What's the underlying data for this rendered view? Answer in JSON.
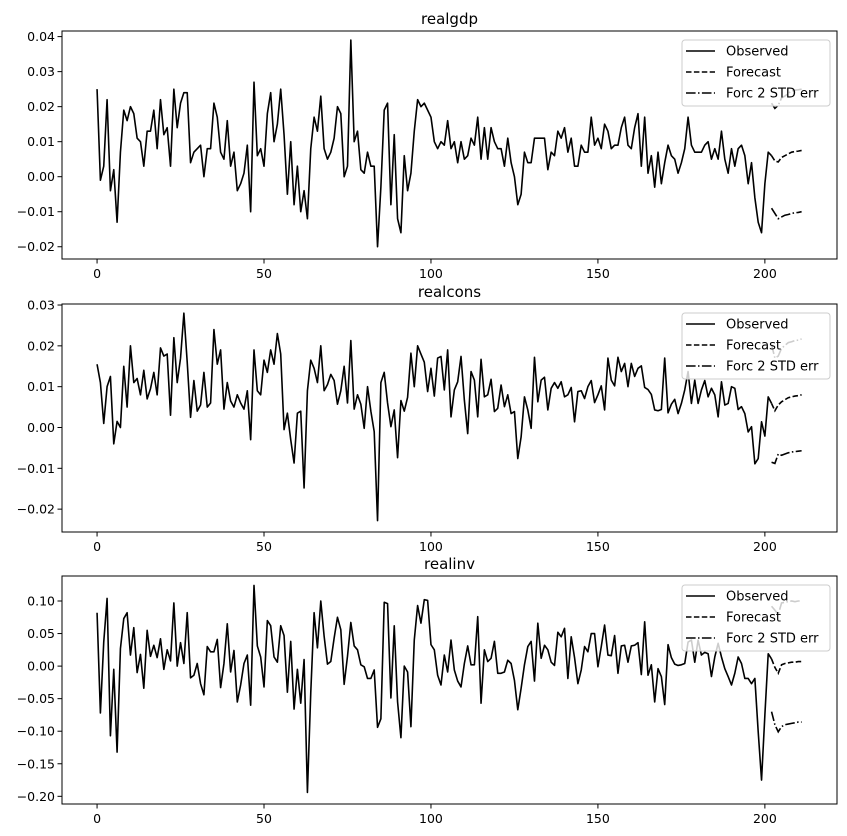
{
  "chart_data": [
    {
      "type": "line",
      "title": "realgdp",
      "xlabel": "",
      "ylabel": "",
      "xlim": [
        -10.5,
        221.6
      ],
      "ylim": [
        -0.0235,
        0.0416
      ],
      "grid": false,
      "legend_placement": "top-right",
      "legend": [
        "Observed",
        "Forecast",
        "Forc 2 STD err"
      ],
      "x_ticks": [
        0,
        50,
        100,
        150,
        200
      ],
      "x_tick_labels": [
        "0",
        "50",
        "100",
        "150",
        "200"
      ],
      "y_ticks": [
        0.04,
        0.03,
        0.02,
        0.01,
        0.0,
        -0.01,
        -0.02
      ],
      "y_tick_labels": [
        "0.04",
        "0.03",
        "0.02",
        "0.01",
        "0.00",
        "−0.01",
        "−0.02"
      ],
      "observed_start": 0,
      "observed": [
        0.025,
        -0.001,
        0.003,
        0.022,
        -0.004,
        0.002,
        -0.013,
        0.007,
        0.019,
        0.016,
        0.02,
        0.018,
        0.011,
        0.01,
        0.003,
        0.013,
        0.013,
        0.019,
        0.008,
        0.022,
        0.012,
        0.014,
        0.003,
        0.025,
        0.014,
        0.021,
        0.024,
        0.024,
        0.004,
        0.007,
        0.008,
        0.009,
        0.0,
        0.008,
        0.008,
        0.021,
        0.017,
        0.007,
        0.005,
        0.016,
        0.003,
        0.007,
        -0.004,
        -0.002,
        0.001,
        0.009,
        -0.01,
        0.027,
        0.006,
        0.008,
        0.003,
        0.018,
        0.024,
        0.01,
        0.015,
        0.025,
        0.012,
        -0.005,
        0.01,
        -0.008,
        0.003,
        -0.01,
        -0.004,
        -0.012,
        0.008,
        0.017,
        0.013,
        0.023,
        0.008,
        0.005,
        0.007,
        0.011,
        0.02,
        0.018,
        0.0,
        0.003,
        0.039,
        0.01,
        0.013,
        0.002,
        0.001,
        0.007,
        0.003,
        0.003,
        -0.02,
        -0.003,
        0.019,
        0.021,
        -0.008,
        0.012,
        -0.012,
        -0.016,
        0.006,
        -0.004,
        0.001,
        0.013,
        0.022,
        0.02,
        0.021,
        0.019,
        0.017,
        0.01,
        0.008,
        0.01,
        0.009,
        0.016,
        0.008,
        0.01,
        0.004,
        0.01,
        0.005,
        0.006,
        0.011,
        0.009,
        0.017,
        0.005,
        0.014,
        0.005,
        0.014,
        0.01,
        0.008,
        0.008,
        0.003,
        0.011,
        0.004,
        0.0,
        -0.008,
        -0.005,
        0.007,
        0.004,
        0.004,
        0.011,
        0.011,
        0.011,
        0.011,
        0.002,
        0.007,
        0.006,
        0.013,
        0.011,
        0.014,
        0.007,
        0.011,
        0.003,
        0.003,
        0.009,
        0.007,
        0.007,
        0.017,
        0.009,
        0.011,
        0.008,
        0.015,
        0.013,
        0.008,
        0.009,
        0.009,
        0.014,
        0.017,
        0.009,
        0.008,
        0.014,
        0.018,
        0.003,
        0.017,
        0.001,
        0.006,
        -0.003,
        0.007,
        -0.002,
        0.004,
        0.009,
        0.006,
        0.005,
        0.001,
        0.004,
        0.008,
        0.017,
        0.009,
        0.007,
        0.007,
        0.007,
        0.009,
        0.01,
        0.005,
        0.008,
        0.005,
        0.013,
        0.005,
        0.001,
        0.008,
        0.003,
        0.008,
        0.009,
        0.006,
        -0.002,
        0.004,
        -0.006,
        -0.013,
        -0.016,
        -0.002,
        0.007,
        0.006
      ],
      "forecast_start": 202,
      "forecast": [
        0.006,
        0.0045,
        0.0042,
        0.0055,
        0.006,
        0.0065,
        0.007,
        0.0072,
        0.0073,
        0.0075
      ],
      "lower": [
        -0.009,
        -0.0105,
        -0.012,
        -0.0115,
        -0.011,
        -0.0108,
        -0.0105,
        -0.0103,
        -0.0102,
        -0.01
      ],
      "upper": [
        0.021,
        0.0195,
        0.0204,
        0.0225,
        0.023,
        0.0238,
        0.0245,
        0.0247,
        0.0248,
        0.025
      ]
    },
    {
      "type": "line",
      "title": "realcons",
      "xlabel": "",
      "ylabel": "",
      "xlim": [
        -10.5,
        221.6
      ],
      "ylim": [
        -0.0256,
        0.03025
      ],
      "grid": false,
      "legend_placement": "top-right",
      "legend": [
        "Observed",
        "Forecast",
        "Forc 2 STD err"
      ],
      "x_ticks": [
        0,
        50,
        100,
        150,
        200
      ],
      "x_tick_labels": [
        "0",
        "50",
        "100",
        "150",
        "200"
      ],
      "y_ticks": [
        0.03,
        0.02,
        0.01,
        0.0,
        -0.01,
        -0.02
      ],
      "y_tick_labels": [
        "0.03",
        "0.02",
        "0.01",
        "0.00",
        "−0.01",
        "−0.02"
      ],
      "observed_start": 0,
      "observed": [
        0.0155,
        0.011,
        0.001,
        0.01,
        0.0125,
        -0.004,
        0.0015,
        0.0,
        0.015,
        0.005,
        0.02,
        0.011,
        0.012,
        0.008,
        0.014,
        0.007,
        0.0095,
        0.0135,
        0.008,
        0.0195,
        0.0175,
        0.018,
        0.003,
        0.022,
        0.011,
        0.017,
        0.028,
        0.016,
        0.0025,
        0.0115,
        0.004,
        0.0055,
        0.0135,
        0.005,
        0.006,
        0.024,
        0.0155,
        0.019,
        0.0045,
        0.011,
        0.0065,
        0.005,
        0.008,
        0.006,
        0.0045,
        0.009,
        -0.003,
        0.019,
        0.009,
        0.008,
        0.0165,
        0.0135,
        0.019,
        0.0155,
        0.023,
        0.018,
        -0.0005,
        0.0035,
        -0.003,
        -0.0087,
        0.0035,
        0.004,
        -0.0148,
        0.009,
        0.0165,
        0.0145,
        0.011,
        0.02,
        0.009,
        0.0105,
        0.013,
        0.0115,
        0.0057,
        0.009,
        0.015,
        0.006,
        0.0213,
        0.0045,
        0.008,
        0.0057,
        -0.0002,
        0.01,
        0.004,
        -0.001,
        -0.0228,
        0.011,
        0.0135,
        0.006,
        0.0002,
        0.0043,
        -0.0074,
        0.0066,
        0.004,
        0.0074,
        0.0182,
        0.01,
        0.02,
        0.018,
        0.016,
        0.0088,
        0.0145,
        0.0077,
        0.017,
        0.0174,
        0.0092,
        0.019,
        0.0026,
        0.0092,
        0.0112,
        0.0174,
        0.0067,
        -0.0015,
        0.0137,
        0.0116,
        0.0026,
        0.0167,
        0.0075,
        0.008,
        0.0118,
        0.0039,
        0.0047,
        0.0104,
        0.0051,
        0.008,
        0.0034,
        0.0039,
        -0.0076,
        -0.0023,
        0.0075,
        0.0043,
        -0.0002,
        0.0172,
        0.0063,
        0.0116,
        0.0123,
        0.0043,
        0.0096,
        0.011,
        0.0096,
        0.0112,
        0.0075,
        0.008,
        0.0098,
        0.0014,
        0.0088,
        0.009,
        0.0071,
        0.01,
        0.0115,
        0.0061,
        0.008,
        0.0102,
        0.0043,
        0.017,
        0.0116,
        0.0102,
        0.0172,
        0.0137,
        0.0157,
        0.01,
        0.0157,
        0.0125,
        0.0145,
        0.0151,
        0.0098,
        0.0093,
        0.0081,
        0.0043,
        0.0041,
        0.0044,
        0.017,
        0.0036,
        0.0057,
        0.0069,
        0.0034,
        0.0059,
        0.0092,
        0.0137,
        0.0059,
        0.0116,
        0.0059,
        0.0092,
        0.0115,
        0.0075,
        0.0096,
        0.008,
        0.0026,
        0.0112,
        0.0055,
        0.0059,
        0.01,
        0.0096,
        0.0044,
        0.0051,
        0.0034,
        -0.0011,
        0.0002,
        -0.0089,
        -0.0076,
        0.0014,
        -0.0021,
        0.0075,
        0.0059
      ],
      "forecast_start": 202,
      "forecast": [
        0.0059,
        0.0041,
        0.0055,
        0.0063,
        0.0068,
        0.0073,
        0.0075,
        0.0077,
        0.0078,
        0.008
      ],
      "lower": [
        -0.0085,
        -0.0088,
        -0.0065,
        -0.0068,
        -0.0065,
        -0.0062,
        -0.006,
        -0.0059,
        -0.0058,
        -0.0057
      ],
      "upper": [
        0.0203,
        0.017,
        0.0175,
        0.0194,
        0.0201,
        0.0208,
        0.021,
        0.0213,
        0.0214,
        0.0217
      ]
    },
    {
      "type": "line",
      "title": "realinv",
      "xlabel": "",
      "ylabel": "",
      "xlim": [
        -10.5,
        221.6
      ],
      "ylim": [
        -0.2118,
        0.1384
      ],
      "grid": false,
      "legend_placement": "top-right",
      "legend": [
        "Observed",
        "Forecast",
        "Forc 2 STD err"
      ],
      "x_ticks": [
        0,
        50,
        100,
        150,
        200
      ],
      "x_tick_labels": [
        "0",
        "50",
        "100",
        "150",
        "200"
      ],
      "y_ticks": [
        0.1,
        0.05,
        0.0,
        -0.05,
        -0.1,
        -0.15,
        -0.2
      ],
      "y_tick_labels": [
        "0.10",
        "0.05",
        "0.00",
        "−0.05",
        "−0.10",
        "−0.15",
        "−0.20"
      ],
      "observed_start": 0,
      "observed": [
        0.082,
        -0.072,
        0.037,
        0.104,
        -0.107,
        -0.005,
        -0.132,
        0.027,
        0.073,
        0.082,
        0.017,
        0.059,
        -0.01,
        0.018,
        -0.034,
        0.055,
        0.015,
        0.032,
        0.013,
        0.042,
        -0.005,
        0.025,
        0.008,
        0.097,
        0.0,
        0.036,
        0.004,
        0.082,
        -0.018,
        -0.014,
        0.004,
        -0.027,
        -0.044,
        0.03,
        0.022,
        0.022,
        0.041,
        -0.033,
        0.004,
        0.065,
        -0.009,
        0.024,
        -0.055,
        -0.029,
        0.004,
        0.017,
        -0.06,
        0.124,
        0.031,
        0.014,
        -0.032,
        0.07,
        0.062,
        0.014,
        0.006,
        0.062,
        0.047,
        -0.04,
        0.038,
        -0.066,
        -0.005,
        -0.057,
        0.01,
        -0.194,
        -0.041,
        0.082,
        0.028,
        0.1,
        0.046,
        0.003,
        0.007,
        0.043,
        0.075,
        0.056,
        -0.028,
        0.015,
        0.067,
        0.031,
        0.025,
        0.002,
        -0.001,
        -0.019,
        -0.019,
        -0.006,
        -0.094,
        -0.081,
        0.098,
        0.096,
        -0.049,
        0.062,
        -0.055,
        -0.11,
        0.0,
        -0.009,
        -0.093,
        0.04,
        0.093,
        0.066,
        0.102,
        0.101,
        0.033,
        0.025,
        -0.014,
        -0.029,
        0.017,
        -0.009,
        0.04,
        -0.006,
        -0.023,
        -0.032,
        0.004,
        0.031,
        0.002,
        0.002,
        0.076,
        -0.057,
        0.025,
        0.007,
        0.012,
        0.038,
        -0.011,
        -0.011,
        -0.009,
        0.009,
        0.004,
        -0.022,
        -0.067,
        -0.034,
        0.002,
        0.03,
        0.038,
        -0.023,
        0.066,
        0.012,
        0.032,
        0.025,
        0.006,
        0.001,
        0.052,
        0.045,
        0.058,
        -0.019,
        0.045,
        0.013,
        -0.027,
        -0.006,
        0.03,
        0.022,
        0.05,
        0.05,
        -0.001,
        0.03,
        0.063,
        0.017,
        0.016,
        0.047,
        -0.011,
        0.031,
        0.032,
        0.006,
        0.031,
        0.032,
        0.036,
        -0.013,
        0.068,
        -0.014,
        0.002,
        -0.055,
        -0.004,
        -0.016,
        -0.059,
        0.033,
        0.013,
        0.003,
        0.001,
        0.002,
        0.004,
        0.037,
        0.04,
        0.006,
        0.04,
        0.017,
        0.021,
        0.019,
        -0.016,
        0.014,
        0.035,
        0.014,
        -0.004,
        -0.016,
        -0.029,
        -0.011,
        0.014,
        0.004,
        -0.019,
        -0.019,
        -0.027,
        -0.019,
        -0.101,
        -0.175,
        -0.075,
        0.019,
        0.011
      ],
      "forecast_start": 202,
      "forecast": [
        0.011,
        -0.002,
        -0.011,
        0.002,
        0.004,
        0.005,
        0.006,
        0.006,
        0.007,
        0.007
      ],
      "lower": [
        -0.07,
        -0.09,
        -0.101,
        -0.093,
        -0.09,
        -0.089,
        -0.088,
        -0.087,
        -0.086,
        -0.086
      ],
      "upper": [
        0.092,
        0.086,
        0.079,
        0.097,
        0.098,
        0.099,
        0.1,
        0.099,
        0.1,
        0.1
      ]
    }
  ],
  "colors": {
    "line": "#000000",
    "legend_border": "#cccccc",
    "background": "#ffffff"
  }
}
